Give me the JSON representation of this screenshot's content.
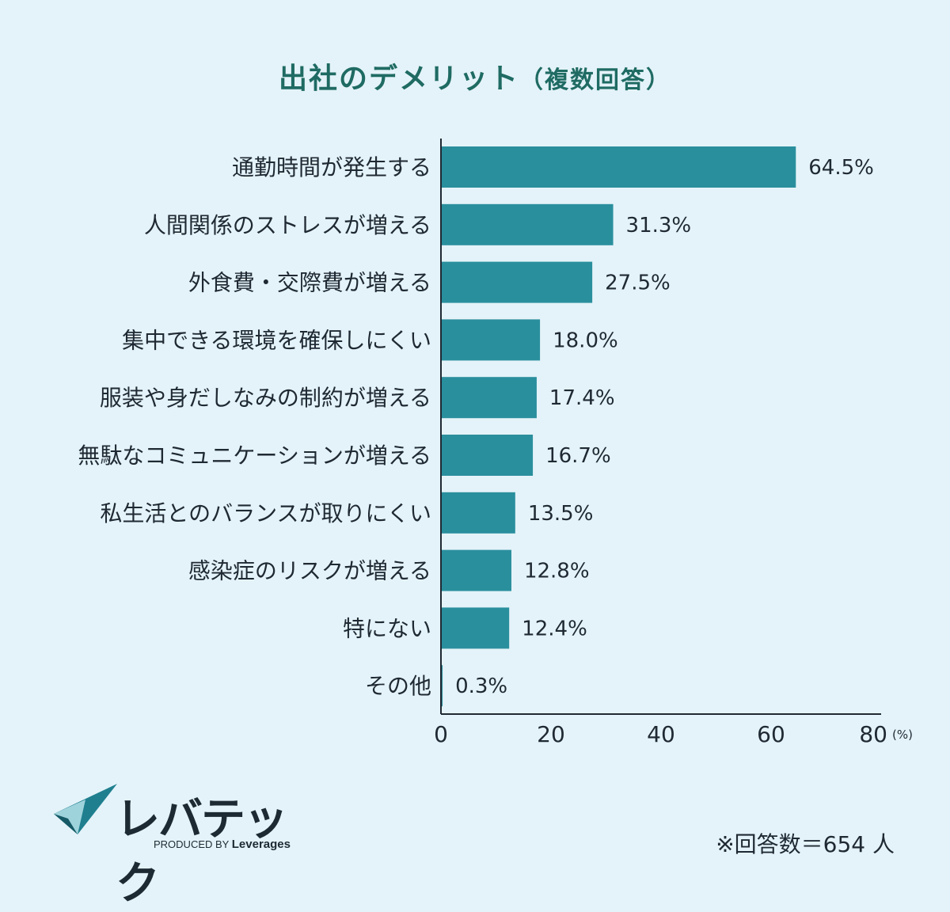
{
  "chart_data": {
    "type": "bar",
    "orientation": "horizontal",
    "title": "出社のデメリット",
    "subtitle": "（複数回答）",
    "categories": [
      "通勤時間が発生する",
      "人間関係のストレスが増える",
      "外食費・交際費が増える",
      "集中できる環境を確保しにくい",
      "服装や身だしなみの制約が増える",
      "無駄なコミュニケーションが増える",
      "私生活とのバランスが取りにくい",
      "感染症のリスクが増える",
      "特にない",
      "その他"
    ],
    "values": [
      64.5,
      31.3,
      27.5,
      18.0,
      17.4,
      16.7,
      13.5,
      12.8,
      12.4,
      0.3
    ],
    "value_labels": [
      "64.5%",
      "31.3%",
      "27.5%",
      "18.0%",
      "17.4%",
      "16.7%",
      "13.5%",
      "12.8%",
      "12.4%",
      "0.3%"
    ],
    "xlim": [
      0,
      80
    ],
    "xticks": [
      0,
      20,
      40,
      60,
      80
    ],
    "xunit": "(%)",
    "grid": false,
    "bar_color": "#2a8f9d"
  },
  "logo": {
    "name": "レバテック",
    "produced_by": "PRODUCED BY",
    "brand": "Leverages"
  },
  "note": "※回答数＝654 人",
  "colors": {
    "background": "#e4f3f9",
    "title": "#1f6b63",
    "bar": "#2a8f9d"
  }
}
